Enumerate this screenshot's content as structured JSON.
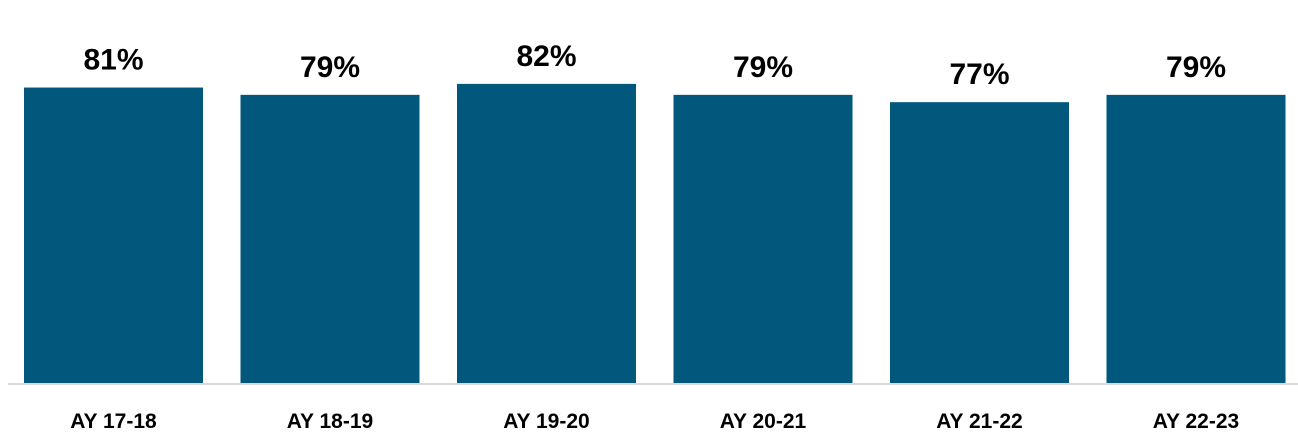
{
  "chart_data": {
    "type": "bar",
    "categories": [
      "AY 17-18",
      "AY 18-19",
      "AY 19-20",
      "AY 20-21",
      "AY 21-22",
      "AY 22-23"
    ],
    "values": [
      81,
      79,
      82,
      79,
      77,
      79
    ],
    "value_labels": [
      "81%",
      "79%",
      "82%",
      "79%",
      "77%",
      "79%"
    ],
    "unit": "%",
    "ylim": [
      0,
      100
    ],
    "grid": false,
    "legend": "none",
    "bar_color": "#02577C",
    "baseline_color": "#D9D9D9"
  }
}
